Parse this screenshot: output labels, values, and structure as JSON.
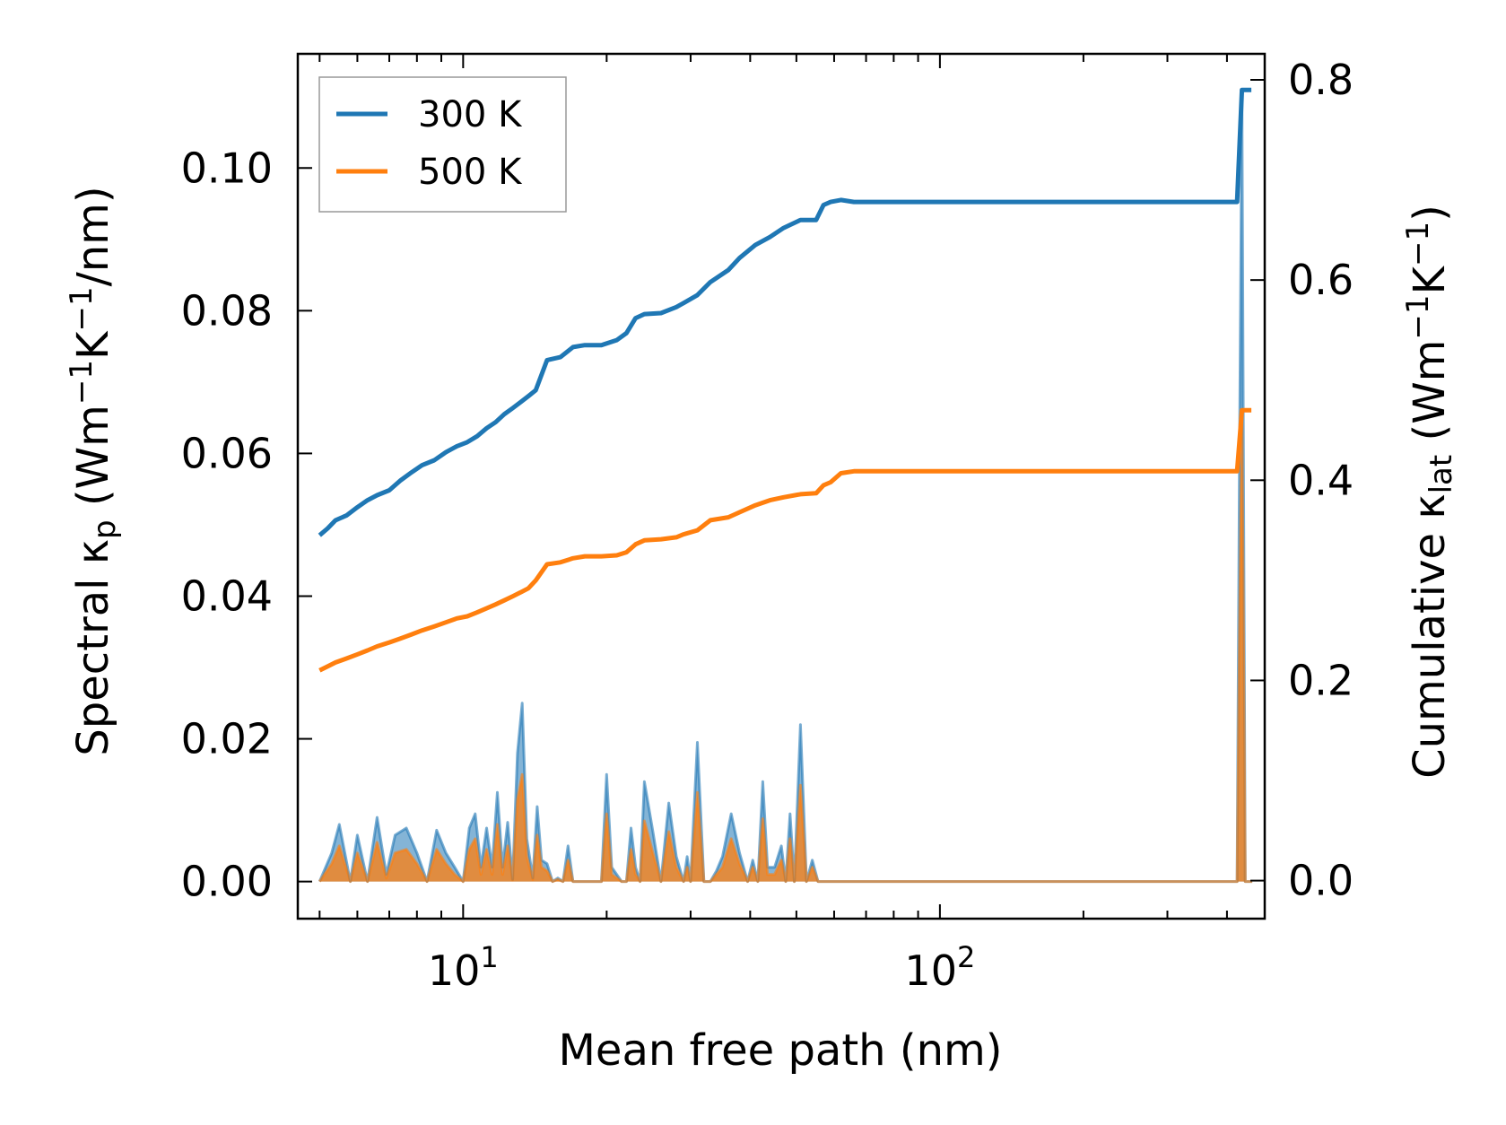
{
  "chart_data": {
    "type": "line",
    "title": "",
    "xlabel": "Mean free path (nm)",
    "ylabel": "Spectral κp (Wm⁻¹K⁻¹/nm)",
    "y2label": "Cumulative κlat (Wm⁻¹K⁻¹)",
    "x_scale": "log",
    "xlim": [
      4.5,
      480
    ],
    "ylim": [
      -0.0052,
      0.116
    ],
    "y2lim": [
      -0.038,
      0.826
    ],
    "x_ticks": [
      {
        "value": 10,
        "base": "10",
        "exp": "1"
      },
      {
        "value": 100,
        "base": "10",
        "exp": "2"
      }
    ],
    "y_ticks": [
      "0.00",
      "0.02",
      "0.04",
      "0.06",
      "0.08",
      "0.10"
    ],
    "y2_ticks": [
      "0.0",
      "0.2",
      "0.4",
      "0.6",
      "0.8"
    ],
    "legend": {
      "position": "top-left",
      "entries": [
        {
          "label": "300 K",
          "color": "#1f77b4"
        },
        {
          "label": "500 K",
          "color": "#ff7f0e"
        }
      ]
    },
    "colors": {
      "s300": "#1f77b4",
      "s500": "#ff7f0e",
      "overlap_fill": "#a98e6a"
    },
    "cumulative_series": [
      {
        "name": "300 K",
        "axis": "right",
        "x": [
          5,
          5.2,
          5.4,
          5.7,
          6.0,
          6.3,
          6.6,
          7.0,
          7.4,
          7.8,
          8.2,
          8.7,
          9.2,
          9.7,
          10.2,
          10.7,
          11.2,
          11.7,
          12.2,
          12.7,
          13.2,
          13.7,
          14.2,
          15.0,
          16.0,
          17.0,
          18.0,
          19.5,
          21.0,
          22.0,
          23.0,
          24.0,
          26.0,
          28.0,
          29.0,
          31.0,
          33.0,
          36.0,
          38.0,
          41.0,
          44.0,
          47.0,
          51.0,
          55.0,
          57.0,
          59.0,
          62.0,
          66.0,
          100,
          200,
          420,
          430,
          440,
          450
        ],
        "y": [
          0.345,
          0.352,
          0.36,
          0.365,
          0.373,
          0.38,
          0.385,
          0.39,
          0.4,
          0.408,
          0.415,
          0.42,
          0.428,
          0.434,
          0.438,
          0.444,
          0.452,
          0.458,
          0.466,
          0.472,
          0.478,
          0.484,
          0.49,
          0.52,
          0.523,
          0.533,
          0.535,
          0.535,
          0.54,
          0.547,
          0.562,
          0.566,
          0.567,
          0.573,
          0.577,
          0.585,
          0.598,
          0.61,
          0.622,
          0.635,
          0.643,
          0.652,
          0.66,
          0.66,
          0.675,
          0.678,
          0.68,
          0.678,
          0.678,
          0.678,
          0.678,
          0.79,
          0.79,
          0.79
        ]
      },
      {
        "name": "500 K",
        "axis": "right",
        "x": [
          5,
          5.2,
          5.4,
          5.7,
          6.0,
          6.3,
          6.6,
          7.0,
          7.4,
          7.8,
          8.2,
          8.7,
          9.2,
          9.7,
          10.2,
          10.7,
          11.2,
          11.7,
          12.2,
          12.7,
          13.2,
          13.7,
          14.2,
          15.0,
          16.0,
          17.0,
          18.0,
          19.5,
          21.0,
          22.0,
          23.0,
          24.0,
          26.0,
          28.0,
          29.0,
          31.0,
          33.0,
          36.0,
          38.0,
          41.0,
          44.0,
          47.0,
          51.0,
          55.0,
          57.0,
          59.0,
          62.0,
          66.0,
          100,
          200,
          420,
          430,
          440,
          450
        ],
        "y": [
          0.21,
          0.214,
          0.218,
          0.222,
          0.226,
          0.23,
          0.234,
          0.238,
          0.242,
          0.246,
          0.25,
          0.254,
          0.258,
          0.262,
          0.264,
          0.268,
          0.272,
          0.276,
          0.28,
          0.284,
          0.288,
          0.292,
          0.3,
          0.316,
          0.318,
          0.322,
          0.324,
          0.324,
          0.325,
          0.328,
          0.336,
          0.34,
          0.341,
          0.343,
          0.346,
          0.35,
          0.36,
          0.363,
          0.368,
          0.375,
          0.38,
          0.383,
          0.386,
          0.387,
          0.395,
          0.398,
          0.407,
          0.409,
          0.409,
          0.409,
          0.409,
          0.47,
          0.47,
          0.47
        ]
      }
    ],
    "spectral_series": [
      {
        "name": "300 K",
        "axis": "left",
        "x": [
          5.0,
          5.3,
          5.5,
          5.8,
          6.0,
          6.3,
          6.6,
          6.9,
          7.2,
          7.6,
          8.0,
          8.4,
          8.8,
          9.2,
          9.6,
          10.0,
          10.3,
          10.6,
          10.9,
          11.2,
          11.5,
          11.8,
          12.1,
          12.4,
          12.7,
          13.0,
          13.3,
          13.6,
          14.0,
          14.3,
          14.6,
          15.0,
          15.4,
          15.8,
          16.2,
          16.6,
          17.0,
          18.5,
          19.5,
          20.0,
          20.5,
          21.5,
          22.0,
          22.5,
          23.0,
          23.5,
          24.0,
          25.0,
          26.0,
          27.0,
          28.0,
          29.0,
          29.5,
          30.0,
          31.0,
          32.0,
          33.0,
          34.0,
          35.0,
          36.5,
          38.0,
          39.5,
          40.5,
          41.5,
          42.5,
          43.5,
          45.0,
          46.5,
          47.5,
          48.5,
          49.5,
          51.0,
          52.5,
          54.0,
          55.5,
          56.5,
          57.5,
          58.5,
          59.5,
          60.5,
          61.5,
          62.5,
          64.0,
          65.5,
          67.0,
          100,
          200,
          420,
          425,
          430,
          437,
          444,
          452
        ],
        "y": [
          0,
          0.004,
          0.008,
          0,
          0.0065,
          0,
          0.009,
          0.001,
          0.0065,
          0.0075,
          0.004,
          0,
          0.0072,
          0.004,
          0.002,
          0,
          0.0075,
          0.0095,
          0.002,
          0.0075,
          0.002,
          0.0125,
          0.002,
          0.0083,
          0.0003,
          0.018,
          0.025,
          0.006,
          0.0005,
          0.0105,
          0.003,
          0.0025,
          0,
          0.0005,
          0,
          0.005,
          0,
          0,
          0,
          0.015,
          0.002,
          0,
          0,
          0.0075,
          0.002,
          0,
          0.014,
          0.007,
          0,
          0.011,
          0.0035,
          0,
          0.0035,
          0,
          0.0195,
          0,
          0,
          0.0015,
          0.0035,
          0.0095,
          0.004,
          0,
          0.003,
          0,
          0.014,
          0.002,
          0.002,
          0.005,
          0,
          0.0095,
          0,
          0.022,
          0,
          0.003,
          0,
          0,
          0,
          0,
          0,
          0,
          0,
          0,
          0,
          0,
          0,
          0,
          0,
          0,
          0.06,
          0.11,
          0,
          0,
          0
        ]
      },
      {
        "name": "500 K",
        "axis": "left",
        "x": [
          5.0,
          5.3,
          5.5,
          5.8,
          6.0,
          6.3,
          6.6,
          6.9,
          7.2,
          7.6,
          8.0,
          8.4,
          8.8,
          9.2,
          9.6,
          10.0,
          10.3,
          10.6,
          10.9,
          11.2,
          11.5,
          11.8,
          12.1,
          12.4,
          12.7,
          13.0,
          13.3,
          13.6,
          14.0,
          14.3,
          14.6,
          15.0,
          15.4,
          15.8,
          16.2,
          16.6,
          17.0,
          18.5,
          19.5,
          20.0,
          20.5,
          21.5,
          22.0,
          22.5,
          23.0,
          23.5,
          24.0,
          25.0,
          26.0,
          27.0,
          28.0,
          29.0,
          29.5,
          30.0,
          31.0,
          32.0,
          33.0,
          34.0,
          35.0,
          36.5,
          38.0,
          39.5,
          40.5,
          41.5,
          42.5,
          43.5,
          45.0,
          46.5,
          47.5,
          48.5,
          49.5,
          51.0,
          52.5,
          54.0,
          55.5,
          56.5,
          57.5,
          58.5,
          59.5,
          60.5,
          61.5,
          62.5,
          64.0,
          65.5,
          67.0,
          100,
          200,
          420,
          425,
          430,
          437,
          444,
          452
        ],
        "y": [
          0,
          0.0025,
          0.005,
          0,
          0.004,
          0,
          0.0055,
          0.0005,
          0.004,
          0.0045,
          0.0025,
          0,
          0.0045,
          0.0025,
          0.001,
          0,
          0.0045,
          0.006,
          0.001,
          0.0045,
          0.001,
          0.008,
          0.001,
          0.005,
          0.0002,
          0.0115,
          0.015,
          0.0035,
          0.0003,
          0.0065,
          0.002,
          0.0015,
          0,
          0.0003,
          0,
          0.003,
          0,
          0,
          0,
          0.0095,
          0.001,
          0,
          0,
          0.0045,
          0.001,
          0,
          0.0085,
          0.004,
          0,
          0.007,
          0.002,
          0,
          0.002,
          0,
          0.0125,
          0,
          0,
          0.001,
          0.002,
          0.006,
          0.0025,
          0,
          0.002,
          0,
          0.0088,
          0.001,
          0.001,
          0.003,
          0,
          0.006,
          0,
          0.0135,
          0,
          0.002,
          0,
          0,
          0,
          0,
          0,
          0,
          0,
          0,
          0,
          0,
          0,
          0,
          0,
          0,
          0.035,
          0.066,
          0,
          0,
          0
        ]
      }
    ]
  }
}
